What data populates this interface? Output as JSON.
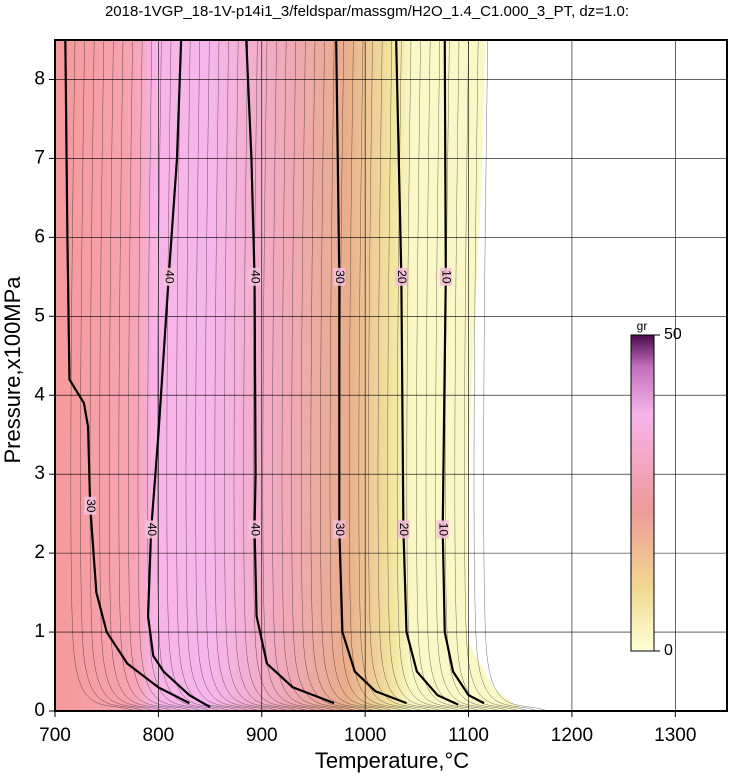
{
  "chart_data": {
    "type": "contour",
    "title": "2018-1VGP_18-1V-p14i1_3/feldspar/massgm/H2O_1.4_C1.000_3_PT, dz=1.0:",
    "x_label": "Temperature,°C",
    "y_label": "Pressure,x100MPa",
    "xlim": [
      700,
      1350
    ],
    "ylim": [
      0,
      8.5
    ],
    "xticks": [
      700,
      800,
      900,
      1000,
      1100,
      1200,
      1300
    ],
    "yticks": [
      0,
      1,
      2,
      3,
      4,
      5,
      6,
      7,
      8
    ],
    "grid": true,
    "series": [
      {
        "name": "30",
        "color": "#000000",
        "x": [
          710,
          712,
          714,
          728,
          732,
          734,
          740,
          750,
          770,
          800,
          830
        ],
        "values": [
          8.5,
          6,
          4.2,
          3.9,
          3.6,
          2.6,
          1.5,
          1.0,
          0.6,
          0.3,
          0.1
        ]
      },
      {
        "name": "40",
        "color": "#000000",
        "x": [
          822,
          818,
          810,
          800,
          793,
          790,
          795,
          805,
          830,
          850
        ],
        "values": [
          8.5,
          7,
          5.5,
          3.5,
          2.3,
          1.2,
          0.7,
          0.5,
          0.2,
          0.05
        ]
      },
      {
        "name": "40",
        "color": "#000000",
        "x": [
          885,
          890,
          893,
          894,
          893,
          895,
          905,
          930,
          970
        ],
        "values": [
          8.5,
          7,
          5.5,
          3,
          2.3,
          1.2,
          0.6,
          0.3,
          0.1
        ]
      },
      {
        "name": "30",
        "color": "#000000",
        "x": [
          972,
          975,
          975,
          978,
          990,
          1010,
          1040
        ],
        "values": [
          8.5,
          5.5,
          2.3,
          1.0,
          0.5,
          0.25,
          0.1
        ]
      },
      {
        "name": "20",
        "color": "#000000",
        "x": [
          1030,
          1035,
          1037,
          1040,
          1050,
          1070,
          1090
        ],
        "values": [
          8.5,
          5.5,
          2.3,
          1.0,
          0.5,
          0.2,
          0.08
        ]
      },
      {
        "name": "10",
        "color": "#000000",
        "x": [
          1077,
          1078,
          1075,
          1077,
          1085,
          1100,
          1115
        ],
        "values": [
          8.5,
          5.5,
          2.3,
          1.0,
          0.5,
          0.2,
          0.1
        ]
      }
    ],
    "colorbar": {
      "label": "gr",
      "lim": [
        0,
        50
      ],
      "ticks": [
        0,
        50
      ]
    }
  }
}
